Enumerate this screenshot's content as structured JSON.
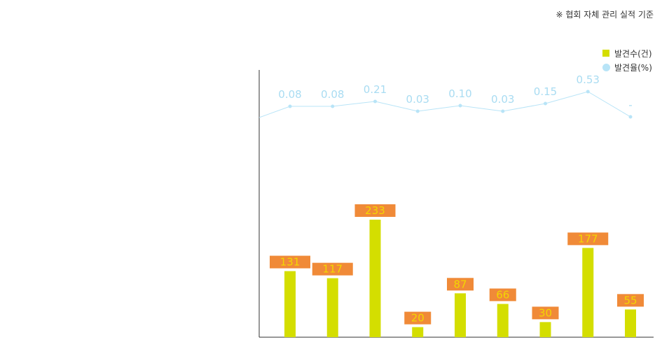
{
  "note": "※ 협회 자체 관리 실적 기준",
  "legend": {
    "count_label": "발견수(건)",
    "rate_label": "발견율(%)"
  },
  "colors": {
    "bar": "#d4de00",
    "label_bg": "#f08a38",
    "label_text": "#f2d600",
    "line": "#b8e4f7",
    "line_label": "#a9dcf2",
    "axis": "#333333"
  },
  "chart_data": {
    "type": "bar",
    "series": [
      {
        "name": "발견수(건)",
        "kind": "bar",
        "values": [
          131,
          117,
          233,
          20,
          87,
          66,
          30,
          177,
          55
        ]
      },
      {
        "name": "발견율(%)",
        "kind": "line",
        "values": [
          0.08,
          0.08,
          0.21,
          0.03,
          0.1,
          0.03,
          0.15,
          0.53,
          null
        ],
        "labels": [
          "0.08",
          "0.08",
          "0.21",
          "0.03",
          "0.10",
          "0.03",
          "0.15",
          "0.53",
          "-"
        ]
      }
    ],
    "bar_labels": [
      "131",
      "117",
      "233",
      "20",
      "87",
      "66",
      "30",
      "177",
      "55"
    ],
    "grid": false,
    "legend_position": "top-right"
  }
}
